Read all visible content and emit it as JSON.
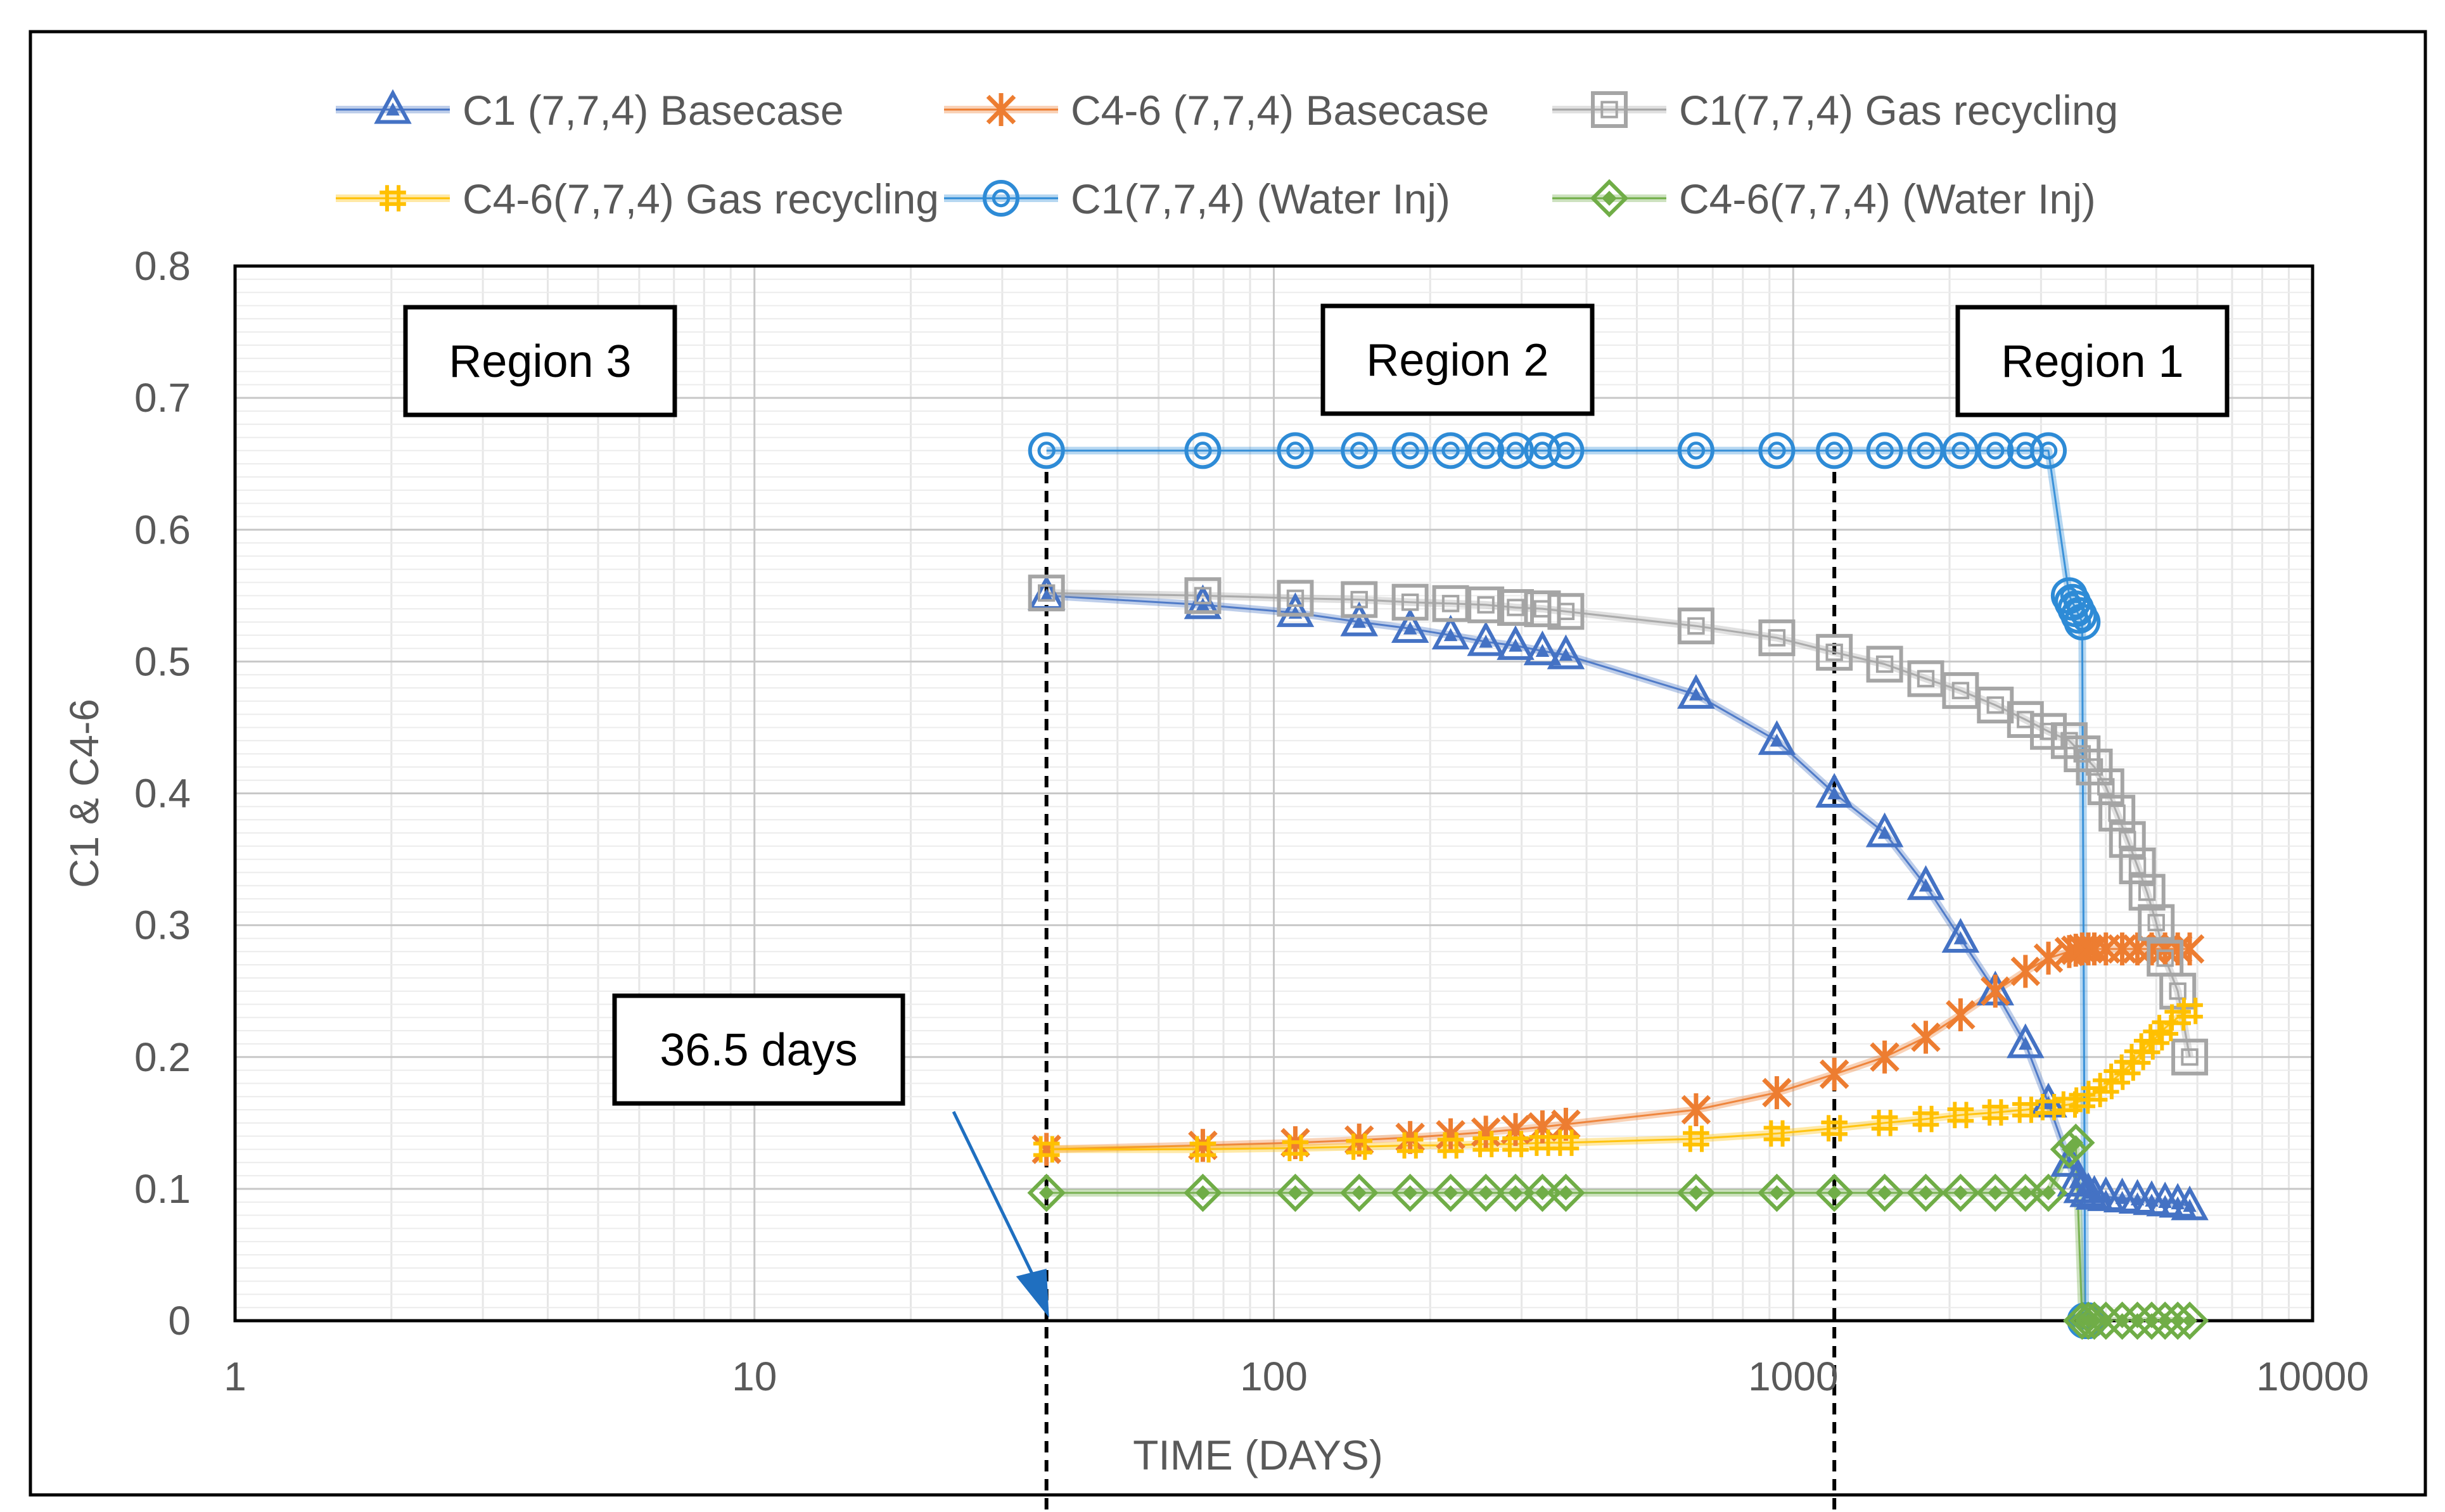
{
  "chart_data": {
    "type": "scatter",
    "xscale": "log",
    "xlim": [
      1,
      10000
    ],
    "ylim": [
      0,
      0.8
    ],
    "xlabel": "TIME (DAYS)",
    "ylabel": "C1 & C4-6",
    "xticks": [
      1,
      10,
      100,
      1000,
      10000
    ],
    "xtick_labels": [
      "1",
      "10",
      "100",
      "1000",
      "10000"
    ],
    "yticks": [
      0,
      0.1,
      0.2,
      0.3,
      0.4,
      0.5,
      0.6,
      0.7,
      0.8
    ],
    "ytick_labels": [
      "0",
      "0.1",
      "0.2",
      "0.3",
      "0.4",
      "0.5",
      "0.6",
      "0.7",
      "0.8"
    ],
    "grid": true,
    "legend_position": "top",
    "series": [
      {
        "name": "C1 (7,7,4) Basecase",
        "color": "#4472c4",
        "marker": "triangle",
        "x": [
          36.5,
          73,
          110,
          146,
          183,
          219,
          256,
          292,
          329,
          365,
          650,
          930,
          1200,
          1500,
          1800,
          2100,
          2450,
          2800,
          3100,
          3400,
          3500,
          3600,
          3700,
          3800,
          4000,
          4300,
          4600,
          4900,
          5200,
          5500,
          5800
        ],
        "y": [
          0.55,
          0.543,
          0.537,
          0.53,
          0.525,
          0.52,
          0.515,
          0.512,
          0.508,
          0.505,
          0.475,
          0.44,
          0.4,
          0.37,
          0.33,
          0.29,
          0.25,
          0.21,
          0.165,
          0.12,
          0.105,
          0.1,
          0.097,
          0.095,
          0.094,
          0.093,
          0.092,
          0.091,
          0.09,
          0.089,
          0.087
        ]
      },
      {
        "name": "C4-6 (7,7,4) Basecase",
        "color": "#ed7d31",
        "marker": "asterisk",
        "x": [
          36.5,
          73,
          110,
          146,
          183,
          219,
          256,
          292,
          329,
          365,
          650,
          930,
          1200,
          1500,
          1800,
          2100,
          2450,
          2800,
          3100,
          3400,
          3500,
          3600,
          3700,
          3800,
          4000,
          4300,
          4600,
          4900,
          5200,
          5500,
          5800
        ],
        "y": [
          0.13,
          0.133,
          0.135,
          0.137,
          0.139,
          0.141,
          0.143,
          0.145,
          0.147,
          0.149,
          0.16,
          0.173,
          0.187,
          0.2,
          0.215,
          0.232,
          0.25,
          0.265,
          0.275,
          0.28,
          0.281,
          0.282,
          0.282,
          0.282,
          0.282,
          0.282,
          0.282,
          0.282,
          0.282,
          0.282,
          0.282
        ]
      },
      {
        "name": "C1(7,7,4) Gas recycling",
        "color": "#a5a5a5",
        "marker": "square",
        "x": [
          36.5,
          73,
          110,
          146,
          183,
          219,
          256,
          292,
          329,
          365,
          650,
          930,
          1200,
          1500,
          1800,
          2100,
          2450,
          2800,
          3100,
          3400,
          3600,
          3800,
          4000,
          4200,
          4400,
          4600,
          4800,
          5000,
          5200,
          5500,
          5800
        ],
        "y": [
          0.552,
          0.55,
          0.548,
          0.547,
          0.545,
          0.544,
          0.543,
          0.541,
          0.54,
          0.538,
          0.527,
          0.518,
          0.507,
          0.498,
          0.487,
          0.478,
          0.467,
          0.456,
          0.447,
          0.44,
          0.43,
          0.42,
          0.405,
          0.385,
          0.365,
          0.345,
          0.325,
          0.302,
          0.275,
          0.25,
          0.2
        ]
      },
      {
        "name": "C4-6(7,7,4) Gas recycling",
        "color": "#ffc000",
        "marker": "plus",
        "x": [
          36.5,
          73,
          110,
          146,
          183,
          219,
          256,
          292,
          329,
          365,
          650,
          930,
          1200,
          1500,
          1800,
          2100,
          2450,
          2800,
          3100,
          3400,
          3600,
          3800,
          4000,
          4200,
          4400,
          4600,
          4800,
          5000,
          5200,
          5500,
          5800
        ],
        "y": [
          0.13,
          0.13,
          0.131,
          0.132,
          0.133,
          0.133,
          0.134,
          0.134,
          0.135,
          0.135,
          0.138,
          0.142,
          0.146,
          0.15,
          0.153,
          0.156,
          0.158,
          0.16,
          0.162,
          0.164,
          0.167,
          0.172,
          0.178,
          0.185,
          0.192,
          0.2,
          0.208,
          0.215,
          0.222,
          0.23,
          0.235
        ]
      },
      {
        "name": "C1(7,7,4) (Water Inj)",
        "color": "#2e8bd6",
        "marker": "circle",
        "x": [
          36.5,
          73,
          110,
          146,
          183,
          219,
          256,
          292,
          329,
          365,
          650,
          930,
          1200,
          1500,
          1800,
          2100,
          2450,
          2800,
          3100,
          3400,
          3450,
          3500,
          3550,
          3600,
          3650,
          3700
        ],
        "y": [
          0.66,
          0.66,
          0.66,
          0.66,
          0.66,
          0.66,
          0.66,
          0.66,
          0.66,
          0.66,
          0.66,
          0.66,
          0.66,
          0.66,
          0.66,
          0.66,
          0.66,
          0.66,
          0.66,
          0.55,
          0.545,
          0.54,
          0.535,
          0.53,
          0.0,
          0.0
        ]
      },
      {
        "name": "C4-6(7,7,4) (Water Inj)",
        "color": "#70ad47",
        "marker": "diamond",
        "x": [
          36.5,
          73,
          110,
          146,
          183,
          219,
          256,
          292,
          329,
          365,
          650,
          930,
          1200,
          1500,
          1800,
          2100,
          2450,
          2800,
          3100,
          3400,
          3500,
          3600,
          3700,
          3800,
          4000,
          4300,
          4600,
          4900,
          5200,
          5500,
          5800
        ],
        "y": [
          0.097,
          0.097,
          0.097,
          0.097,
          0.097,
          0.097,
          0.097,
          0.097,
          0.097,
          0.097,
          0.097,
          0.097,
          0.097,
          0.097,
          0.097,
          0.097,
          0.097,
          0.097,
          0.097,
          0.13,
          0.135,
          0.0,
          0.0,
          0.0,
          0.0,
          0.0,
          0.0,
          0.0,
          0.0,
          0.0,
          0.0
        ]
      }
    ],
    "annotations": [
      {
        "label": "Region 3"
      },
      {
        "label": "Region 2"
      },
      {
        "label": "Region 1"
      },
      {
        "label": "36.5 days"
      }
    ],
    "reference_lines": [
      {
        "orientation": "vertical",
        "x": 36.5
      },
      {
        "orientation": "vertical",
        "x": 1200
      }
    ]
  }
}
